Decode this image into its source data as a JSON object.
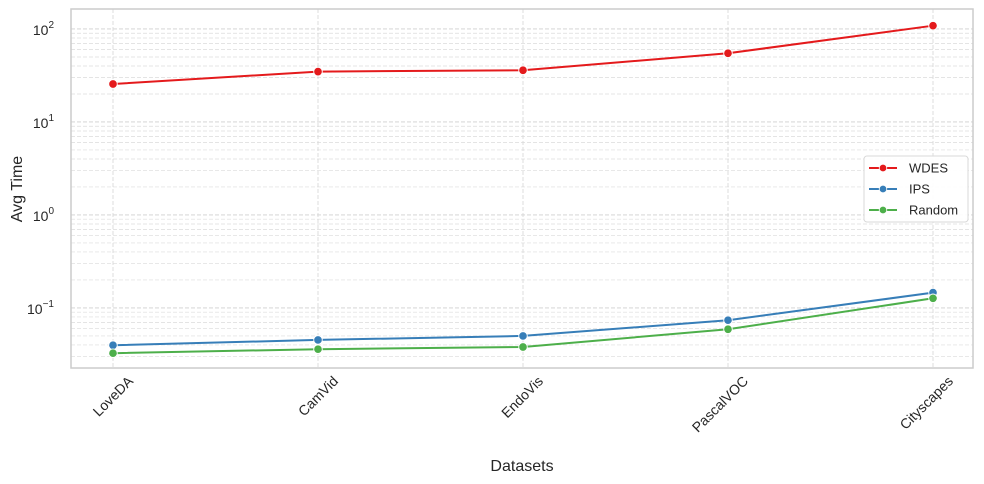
{
  "chart_data": {
    "type": "line",
    "title": "",
    "xlabel": "Datasets",
    "ylabel": "Avg Time",
    "yscale": "log",
    "ylim": [
      0.0226,
      164
    ],
    "y_ticks": [
      {
        "base": "10",
        "exp": "2",
        "value": 100
      },
      {
        "base": "10",
        "exp": "1",
        "value": 10
      },
      {
        "base": "10",
        "exp": "0",
        "value": 1
      },
      {
        "base": "10",
        "exp": "−1",
        "value": 0.1
      }
    ],
    "categories": [
      "LoveDA",
      "CamVid",
      "EndoVis",
      "PascalVOC",
      "Cityscapes"
    ],
    "series": [
      {
        "name": "WDES",
        "color": "#e41a1c",
        "values": [
          25.6,
          34.8,
          36.0,
          54.8,
          108.5
        ]
      },
      {
        "name": "IPS",
        "color": "#377eb8",
        "values": [
          0.0397,
          0.0453,
          0.05,
          0.0738,
          0.146
        ]
      },
      {
        "name": "Random",
        "color": "#4daf4a",
        "values": [
          0.0326,
          0.036,
          0.038,
          0.059,
          0.127
        ]
      }
    ],
    "grid": true,
    "grid_minor": true,
    "legend_position": "center right",
    "xtick_rotation": 45,
    "marker": "o"
  }
}
